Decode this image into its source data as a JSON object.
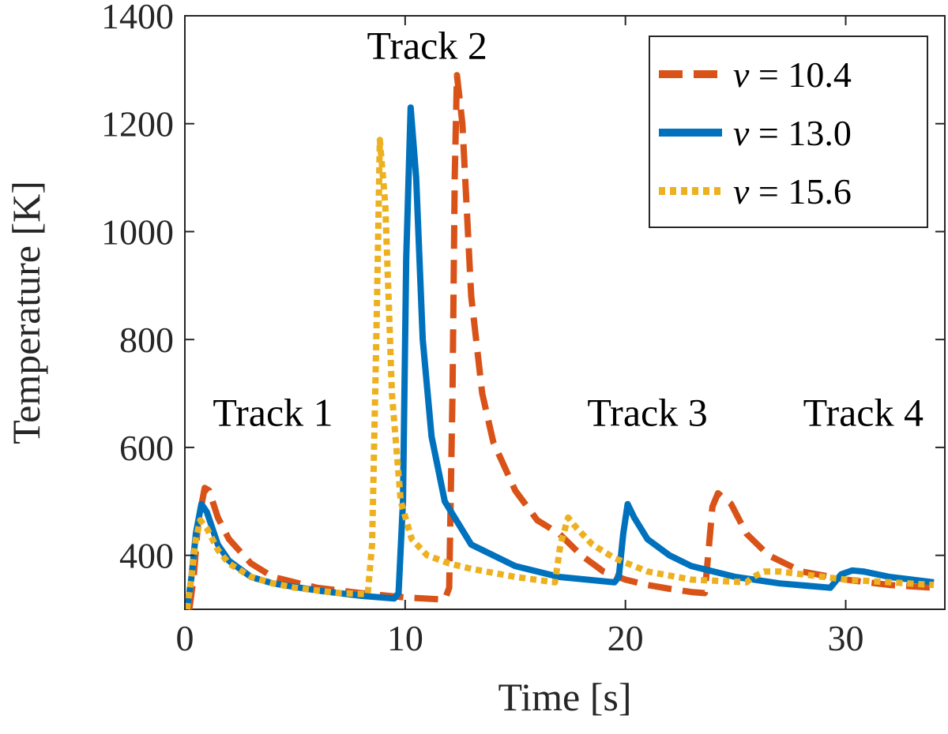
{
  "chart_data": {
    "type": "line",
    "title": "",
    "xlabel": "Time [s]",
    "ylabel": "Temperature [K]",
    "xlim": [
      0,
      34.5
    ],
    "ylim": [
      300,
      1400
    ],
    "xticks": [
      0,
      10,
      20,
      30
    ],
    "yticks": [
      400,
      600,
      800,
      1000,
      1200,
      1400
    ],
    "grid": false,
    "legend": {
      "position": "top-right",
      "entries": [
        {
          "variable": "v",
          "text": " = 10.4"
        },
        {
          "variable": "v",
          "text": " = 13.0"
        },
        {
          "variable": "v",
          "text": " = 15.6"
        }
      ]
    },
    "annotations": [
      {
        "text": "Track 1",
        "x": 4.0,
        "y": 640
      },
      {
        "text": "Track 2",
        "x": 11.0,
        "y": 1320
      },
      {
        "text": "Track 3",
        "x": 21.0,
        "y": 640
      },
      {
        "text": "Track 4",
        "x": 30.8,
        "y": 640
      }
    ],
    "series": [
      {
        "name": "v = 10.4",
        "color": "#D95319",
        "dash": "dashed",
        "points": [
          [
            0.2,
            300
          ],
          [
            0.4,
            360
          ],
          [
            0.6,
            460
          ],
          [
            0.9,
            525
          ],
          [
            1.1,
            520
          ],
          [
            1.5,
            470
          ],
          [
            2,
            430
          ],
          [
            3,
            385
          ],
          [
            4,
            360
          ],
          [
            6,
            340
          ],
          [
            8,
            330
          ],
          [
            10,
            322
          ],
          [
            11.8,
            318
          ],
          [
            12.0,
            340
          ],
          [
            12.15,
            700
          ],
          [
            12.25,
            1100
          ],
          [
            12.35,
            1290
          ],
          [
            12.6,
            1200
          ],
          [
            13,
            880
          ],
          [
            13.5,
            700
          ],
          [
            14,
            610
          ],
          [
            15,
            520
          ],
          [
            16,
            465
          ],
          [
            17,
            440
          ],
          [
            18,
            400
          ],
          [
            19,
            370
          ],
          [
            20,
            355
          ],
          [
            21,
            345
          ],
          [
            22,
            338
          ],
          [
            23,
            332
          ],
          [
            23.6,
            330
          ],
          [
            23.8,
            420
          ],
          [
            23.95,
            490
          ],
          [
            24.2,
            515
          ],
          [
            24.8,
            495
          ],
          [
            25.5,
            440
          ],
          [
            26.5,
            400
          ],
          [
            28,
            370
          ],
          [
            30,
            355
          ],
          [
            32,
            345
          ],
          [
            34,
            340
          ]
        ]
      },
      {
        "name": "v = 13.0",
        "color": "#0072BD",
        "dash": "solid",
        "points": [
          [
            0.1,
            300
          ],
          [
            0.3,
            360
          ],
          [
            0.5,
            440
          ],
          [
            0.75,
            495
          ],
          [
            1.0,
            480
          ],
          [
            1.5,
            420
          ],
          [
            2,
            390
          ],
          [
            3,
            360
          ],
          [
            4,
            348
          ],
          [
            6,
            335
          ],
          [
            8,
            325
          ],
          [
            9.5,
            320
          ],
          [
            9.7,
            330
          ],
          [
            9.9,
            500
          ],
          [
            10.05,
            950
          ],
          [
            10.25,
            1230
          ],
          [
            10.5,
            1100
          ],
          [
            10.8,
            800
          ],
          [
            11.2,
            620
          ],
          [
            11.8,
            500
          ],
          [
            13,
            420
          ],
          [
            15,
            380
          ],
          [
            17,
            360
          ],
          [
            19.5,
            350
          ],
          [
            19.7,
            360
          ],
          [
            19.9,
            440
          ],
          [
            20.1,
            495
          ],
          [
            20.4,
            470
          ],
          [
            21,
            430
          ],
          [
            22,
            400
          ],
          [
            23,
            380
          ],
          [
            25,
            360
          ],
          [
            27,
            348
          ],
          [
            29.3,
            340
          ],
          [
            29.5,
            350
          ],
          [
            29.8,
            365
          ],
          [
            30.3,
            372
          ],
          [
            30.8,
            370
          ],
          [
            32,
            360
          ],
          [
            34,
            350
          ]
        ]
      },
      {
        "name": "v = 15.6",
        "color": "#EDB120",
        "dash": "dotted",
        "points": [
          [
            0.1,
            300
          ],
          [
            0.3,
            360
          ],
          [
            0.5,
            430
          ],
          [
            0.7,
            465
          ],
          [
            1.0,
            450
          ],
          [
            1.5,
            410
          ],
          [
            2,
            385
          ],
          [
            3,
            360
          ],
          [
            4,
            348
          ],
          [
            5,
            340
          ],
          [
            6,
            335
          ],
          [
            7,
            330
          ],
          [
            8.3,
            328
          ],
          [
            8.5,
            420
          ],
          [
            8.7,
            820
          ],
          [
            8.85,
            1170
          ],
          [
            9.1,
            1050
          ],
          [
            9.4,
            700
          ],
          [
            9.8,
            500
          ],
          [
            10.3,
            430
          ],
          [
            11,
            400
          ],
          [
            12,
            385
          ],
          [
            13,
            375
          ],
          [
            15,
            360
          ],
          [
            16.8,
            350
          ],
          [
            17.05,
            420
          ],
          [
            17.4,
            470
          ],
          [
            17.8,
            450
          ],
          [
            18.5,
            420
          ],
          [
            19.5,
            395
          ],
          [
            21,
            370
          ],
          [
            23,
            355
          ],
          [
            25.5,
            350
          ],
          [
            25.8,
            360
          ],
          [
            26.3,
            370
          ],
          [
            27,
            370
          ],
          [
            28,
            365
          ],
          [
            30,
            355
          ],
          [
            32,
            350
          ],
          [
            34,
            345
          ]
        ]
      }
    ]
  }
}
